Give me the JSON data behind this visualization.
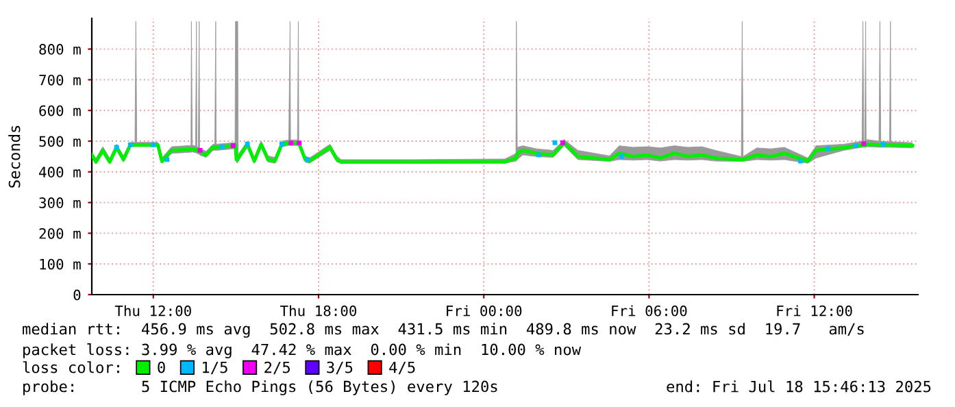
{
  "chart_data": {
    "type": "line",
    "ylabel": "Seconds",
    "legend_title": "loss color:",
    "xlim": [
      "2025-07-17T09:46",
      "2025-07-18T15:46"
    ],
    "xticks": [
      {
        "value": "2025-07-17T12:00",
        "label": "Thu 12:00"
      },
      {
        "value": "2025-07-17T18:00",
        "label": "Thu 18:00"
      },
      {
        "value": "2025-07-18T00:00",
        "label": "Fri 00:00"
      },
      {
        "value": "2025-07-18T06:00",
        "label": "Fri 06:00"
      },
      {
        "value": "2025-07-18T12:00",
        "label": "Fri 12:00"
      }
    ],
    "ylim": [
      0,
      900
    ],
    "yticks": [
      0,
      {
        "value": 100,
        "label": "100 m"
      },
      {
        "value": 200,
        "label": "200 m"
      },
      {
        "value": 300,
        "label": "300 m"
      },
      {
        "value": 400,
        "label": "400 m"
      },
      {
        "value": 500,
        "label": "500 m"
      },
      {
        "value": 600,
        "label": "600 m"
      },
      {
        "value": 700,
        "label": "700 m"
      },
      {
        "value": 800,
        "label": "800 m"
      }
    ],
    "grid": true,
    "legend": "bottom",
    "series": [
      {
        "name": "0",
        "color": "#00ee00",
        "x": [
          "2025-07-17T09:46",
          "2025-07-17T09:55",
          "2025-07-17T10:10",
          "2025-07-17T10:25",
          "2025-07-17T10:40",
          "2025-07-17T10:55",
          "2025-07-17T11:10",
          "2025-07-17T11:20",
          "2025-07-17T11:22",
          "2025-07-17T11:24",
          "2025-07-17T12:10",
          "2025-07-17T12:19",
          "2025-07-17T12:40",
          "2025-07-17T13:22",
          "2025-07-17T13:23",
          "2025-07-17T13:25",
          "2025-07-17T13:32",
          "2025-07-17T13:34",
          "2025-07-17T13:35",
          "2025-07-17T13:38",
          "2025-07-17T13:40",
          "2025-07-17T13:41",
          "2025-07-17T13:55",
          "2025-07-17T14:10",
          "2025-07-17T14:14",
          "2025-07-17T14:16",
          "2025-07-17T14:17",
          "2025-07-17T14:55",
          "2025-07-17T14:58",
          "2025-07-17T14:59",
          "2025-07-17T15:01",
          "2025-07-17T15:04",
          "2025-07-17T15:05",
          "2025-07-17T15:25",
          "2025-07-17T15:40",
          "2025-07-17T15:55",
          "2025-07-17T16:10",
          "2025-07-17T16:25",
          "2025-07-17T16:40",
          "2025-07-17T16:55",
          "2025-07-17T16:58",
          "2025-07-17T16:59",
          "2025-07-17T17:14",
          "2025-07-17T17:16",
          "2025-07-17T17:17",
          "2025-07-17T17:31",
          "2025-07-17T17:40",
          "2025-07-17T18:25",
          "2025-07-17T18:40",
          "2025-07-17T18:49",
          "2025-07-17T21:25",
          "2025-07-18T00:46",
          "2025-07-18T01:10",
          "2025-07-18T01:11",
          "2025-07-18T01:13",
          "2025-07-18T01:25",
          "2025-07-18T01:55",
          "2025-07-18T02:31",
          "2025-07-18T02:55",
          "2025-07-18T03:25",
          "2025-07-18T04:34",
          "2025-07-18T04:55",
          "2025-07-18T05:25",
          "2025-07-18T05:55",
          "2025-07-18T06:25",
          "2025-07-18T06:55",
          "2025-07-18T07:25",
          "2025-07-18T07:55",
          "2025-07-18T08:25",
          "2025-07-18T09:21",
          "2025-07-18T09:23",
          "2025-07-18T09:25",
          "2025-07-18T09:55",
          "2025-07-18T10:25",
          "2025-07-18T10:55",
          "2025-07-18T11:46",
          "2025-07-18T12:04",
          "2025-07-18T13:04",
          "2025-07-18T13:44",
          "2025-07-18T13:46",
          "2025-07-18T13:48",
          "2025-07-18T13:50",
          "2025-07-18T13:52",
          "2025-07-18T13:53",
          "2025-07-18T13:55",
          "2025-07-18T14:21",
          "2025-07-18T14:23",
          "2025-07-18T14:25",
          "2025-07-18T14:40",
          "2025-07-18T14:44",
          "2025-07-18T14:46",
          "2025-07-18T14:47",
          "2025-07-18T15:34"
        ],
        "values": [
          455,
          432,
          470,
          432,
          480,
          440,
          488,
          488,
          488,
          488,
          488,
          434,
          470,
          474,
          474,
          475,
          472,
          472,
          470,
          468,
          468,
          465,
          455,
          480,
          480,
          480,
          480,
          485,
          485,
          485,
          440,
          440,
          445,
          490,
          435,
          490,
          440,
          435,
          490,
          494,
          494,
          494,
          494,
          494,
          494,
          440,
          435,
          480,
          440,
          432,
          432,
          433,
          445,
          445,
          460,
          470,
          460,
          455,
          495,
          450,
          440,
          460,
          450,
          455,
          445,
          460,
          450,
          455,
          445,
          440,
          440,
          440,
          455,
          450,
          460,
          435,
          470,
          478,
          488,
          488,
          488,
          488,
          488,
          488,
          490,
          488,
          488,
          488,
          488,
          488,
          488,
          488,
          485
        ],
        "lower": [
          447,
          426,
          460,
          426,
          470,
          432,
          482,
          482,
          482,
          482,
          482,
          428,
          460,
          464,
          464,
          465,
          462,
          462,
          460,
          458,
          458,
          455,
          447,
          470,
          470,
          470,
          470,
          475,
          475,
          475,
          430,
          430,
          435,
          480,
          428,
          480,
          432,
          428,
          482,
          486,
          486,
          486,
          486,
          486,
          486,
          432,
          428,
          470,
          432,
          428,
          428,
          428,
          435,
          435,
          440,
          455,
          450,
          447,
          485,
          440,
          434,
          440,
          438,
          440,
          435,
          440,
          438,
          440,
          435,
          434,
          434,
          434,
          440,
          438,
          440,
          428,
          445,
          470,
          480,
          480,
          480,
          480,
          480,
          480,
          482,
          480,
          480,
          480,
          480,
          480,
          480,
          480,
          478
        ],
        "upper": [
          465,
          444,
          482,
          444,
          490,
          452,
          496,
          496,
          890,
          496,
          496,
          446,
          482,
          486,
          890,
          487,
          484,
          890,
          482,
          480,
          890,
          477,
          467,
          490,
          490,
          890,
          490,
          495,
          495,
          890,
          890,
          890,
          457,
          500,
          447,
          500,
          452,
          447,
          500,
          504,
          890,
          504,
          504,
          890,
          504,
          452,
          445,
          490,
          452,
          440,
          440,
          442,
          460,
          890,
          480,
          485,
          475,
          470,
          505,
          470,
          452,
          485,
          480,
          482,
          478,
          485,
          480,
          482,
          470,
          450,
          890,
          450,
          478,
          475,
          480,
          445,
          485,
          490,
          500,
          890,
          500,
          500,
          890,
          500,
          505,
          500,
          890,
          500,
          498,
          498,
          890,
          498,
          495
        ]
      },
      {
        "name": "1/5",
        "color": "#00b8ff",
        "type": "scatter",
        "marker": "square",
        "x": [
          "2025-07-17T10:40",
          "2025-07-17T11:10",
          "2025-07-17T12:00",
          "2025-07-17T12:30",
          "2025-07-17T14:30",
          "2025-07-17T15:25",
          "2025-07-17T16:40",
          "2025-07-17T17:36",
          "2025-07-18T02:00",
          "2025-07-18T02:35",
          "2025-07-18T05:00",
          "2025-07-18T11:30",
          "2025-07-18T12:30",
          "2025-07-18T13:30",
          "2025-07-18T14:30"
        ],
        "values": [
          480,
          488,
          488,
          440,
          482,
          490,
          490,
          440,
          455,
          495,
          450,
          435,
          475,
          485,
          490
        ]
      },
      {
        "name": "2/5",
        "color": "#ee00ee",
        "type": "scatter",
        "marker": "square",
        "x": [
          "2025-07-17T13:42",
          "2025-07-17T14:54",
          "2025-07-17T17:00",
          "2025-07-17T17:18",
          "2025-07-18T02:52",
          "2025-07-18T13:48"
        ],
        "values": [
          470,
          485,
          494,
          494,
          495,
          492
        ]
      },
      {
        "name": "3/5",
        "color": "#6000ff",
        "type": "scatter",
        "marker": "square"
      },
      {
        "name": "4/5",
        "color": "#ff0000",
        "type": "scatter",
        "marker": "square"
      }
    ],
    "annotations": [
      "median rtt:  456.9 ms avg  502.8 ms max  431.5 ms min  489.8 ms now  23.2 ms sd  19.7   am/s",
      "packet loss: 3.99 % avg  47.42 % max  0.00 % min  10.00 % now",
      "probe:       5 ICMP Echo Pings (56 Bytes) every 120s",
      "end: Fri Jul 18 15:46:13 2025"
    ]
  }
}
